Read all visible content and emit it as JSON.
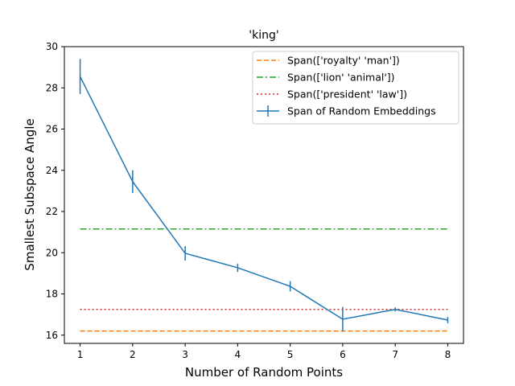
{
  "chart_data": {
    "type": "line",
    "title": "'king'",
    "xlabel": "Number of Random Points",
    "ylabel": "Smallest Subspace Angle",
    "xlim": [
      0.7,
      8.3
    ],
    "ylim": [
      15.6,
      30.0
    ],
    "xticks": [
      1,
      2,
      3,
      4,
      5,
      6,
      7,
      8
    ],
    "yticks": [
      16,
      18,
      20,
      22,
      24,
      26,
      28,
      30
    ],
    "legend_position": "top-right",
    "grid": false,
    "reference_lines": [
      {
        "name": "Span(['royalty' 'man'])",
        "y": 16.2,
        "color": "#ff7f0e",
        "style": "dashed"
      },
      {
        "name": "Span(['lion' 'animal'])",
        "y": 21.15,
        "color": "#2ca02c",
        "style": "dashdot"
      },
      {
        "name": "Span(['president' 'law'])",
        "y": 17.25,
        "color": "#d62728",
        "style": "dotted"
      }
    ],
    "series": [
      {
        "name": "Span of Random Embeddings",
        "color": "#1f77b4",
        "x": [
          1,
          2,
          3,
          4,
          5,
          6,
          7,
          8
        ],
        "y": [
          28.55,
          23.45,
          19.97,
          19.27,
          18.37,
          16.77,
          17.25,
          16.73
        ],
        "error": [
          0.85,
          0.55,
          0.35,
          0.2,
          0.25,
          0.6,
          0.1,
          0.15
        ]
      }
    ]
  }
}
